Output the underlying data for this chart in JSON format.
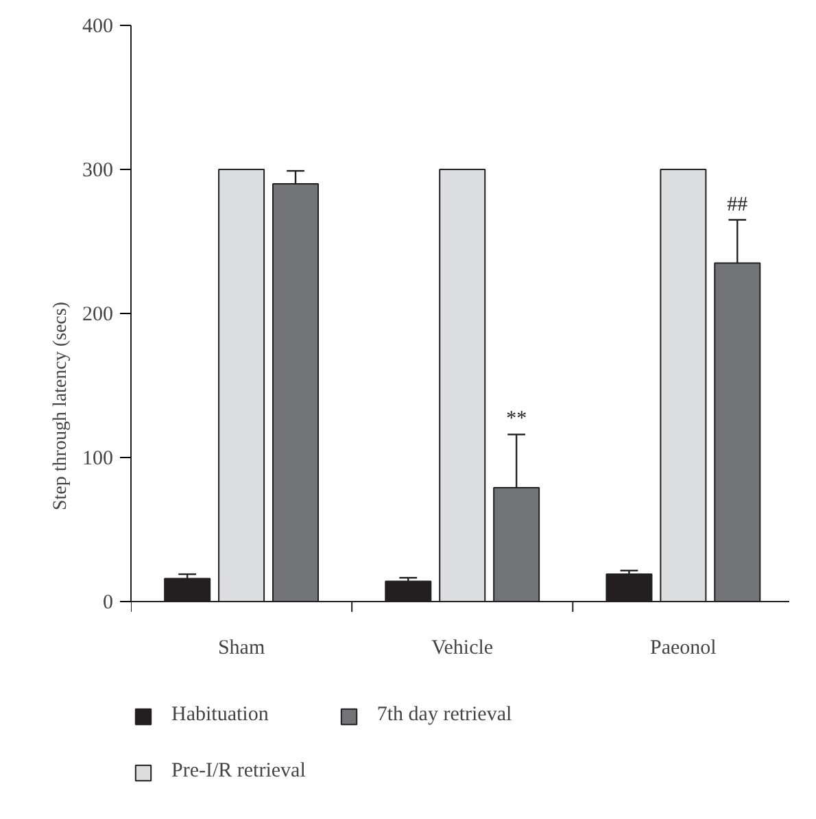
{
  "chart_data": {
    "type": "bar",
    "ylabel": "Step through latency (secs)",
    "categories": [
      "Sham",
      "Vehicle",
      "Paeonol"
    ],
    "series": [
      {
        "name": "Habituation",
        "color": "#231f20",
        "values": [
          16,
          14,
          19
        ],
        "errors": [
          [
            16,
            19
          ],
          [
            14,
            16.5
          ],
          [
            19,
            21.5
          ]
        ]
      },
      {
        "name": "Pre-I/R retrieval",
        "color": "#dcdddf",
        "values": [
          300,
          300,
          300
        ]
      },
      {
        "name": "7th day retrieval",
        "color": "#737478",
        "values": [
          290,
          79,
          235
        ],
        "errors": [
          [
            290,
            299
          ],
          [
            79,
            116
          ],
          [
            235,
            265
          ]
        ]
      }
    ],
    "ylim": [
      0,
      400
    ],
    "yticks": [
      0,
      100,
      200,
      300,
      400
    ],
    "annotations": [
      "**",
      "##"
    ],
    "legend": "bottom",
    "grid": false
  }
}
